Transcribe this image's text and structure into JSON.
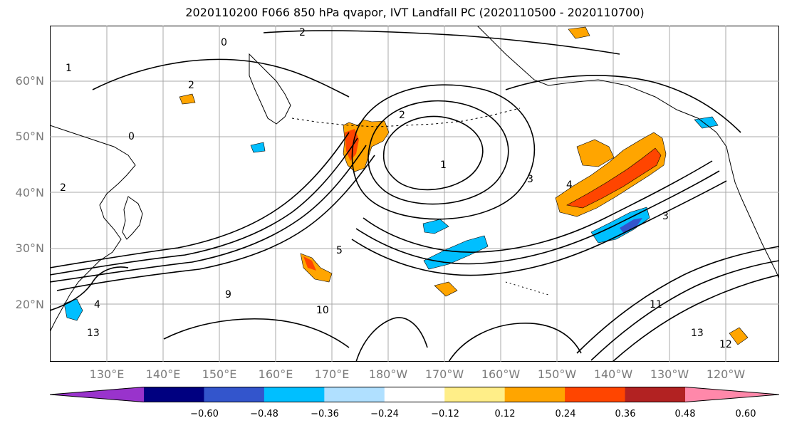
{
  "title": "2020110200 F066 850 hPa qvapor, IVT Landfall PC (2020110500 - 2020110700)",
  "map": {
    "lat_labels": [
      "60°N",
      "50°N",
      "40°N",
      "30°N",
      "20°N"
    ],
    "lon_labels": [
      "130°E",
      "140°E",
      "150°E",
      "160°E",
      "170°E",
      "180°W",
      "170°W",
      "160°W",
      "150°W",
      "140°W",
      "130°W",
      "120°W"
    ],
    "contour_labels": [
      "2",
      "1",
      "0",
      "2",
      "3",
      "4",
      "3",
      "2",
      "1",
      "0",
      "2",
      "5",
      "9",
      "10",
      "11",
      "12",
      "13",
      "13",
      "4"
    ],
    "colors": {
      "coast": "#000000",
      "grid": "#a9a9a9",
      "contour": "#000000"
    }
  },
  "colorbar": {
    "colors": [
      "#9933cc",
      "#000080",
      "#3355cc",
      "#00bfff",
      "#b0e0ff",
      "#ffffff",
      "#ffee88",
      "#ffa500",
      "#ff4500",
      "#b22222",
      "#ff88aa"
    ],
    "tick_labels": [
      "−0.60",
      "−0.48",
      "−0.36",
      "−0.24",
      "−0.12",
      "0.12",
      "0.24",
      "0.36",
      "0.48",
      "0.60"
    ]
  }
}
